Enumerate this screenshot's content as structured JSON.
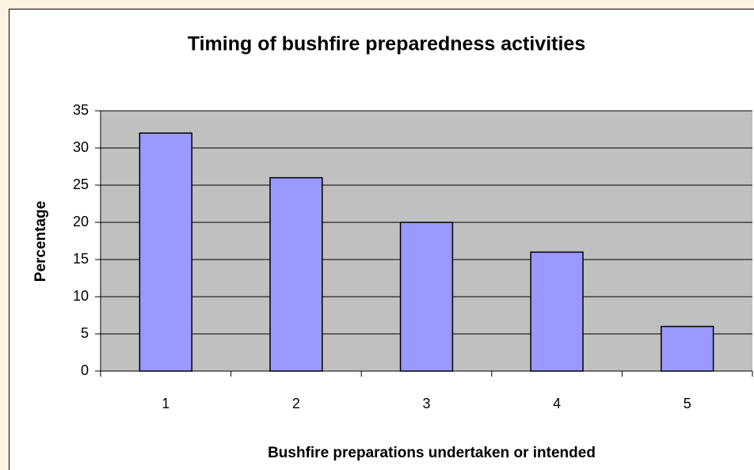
{
  "chart_data": {
    "type": "bar",
    "title": "Timing of bushfire preparedness activities",
    "x_label": "Bushfire preparations undertaken or intended",
    "y_label": "Percentage",
    "categories": [
      "1",
      "2",
      "3",
      "4",
      "5"
    ],
    "values": [
      32,
      26,
      20,
      16,
      6
    ],
    "color": "#9999ff",
    "ylim": [
      0,
      35
    ],
    "yticks": [
      0,
      5,
      10,
      15,
      20,
      25,
      30,
      35
    ],
    "grid": true
  }
}
